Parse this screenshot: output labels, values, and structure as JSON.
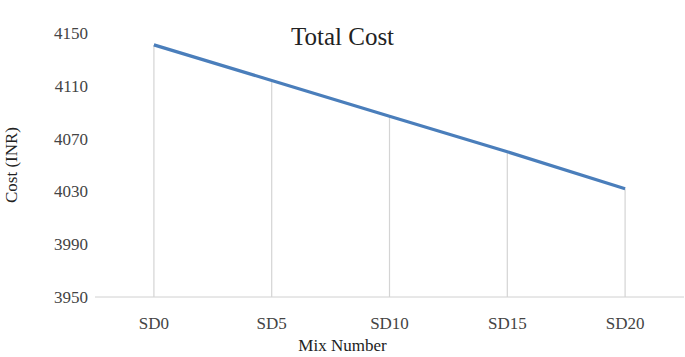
{
  "chart_data": {
    "type": "line",
    "title": "Total Cost",
    "x_label": "Mix Number",
    "y_label": "Cost (INR)",
    "categories": [
      "SD0",
      "SD5",
      "SD10",
      "SD15",
      "SD20"
    ],
    "values": [
      4141,
      4114,
      4087,
      4060,
      4032
    ],
    "color": "#4a7ebb",
    "ylim": [
      3950,
      4150
    ],
    "yticks": [
      3950,
      3990,
      4030,
      4070,
      4110,
      4150
    ],
    "grid": false
  }
}
